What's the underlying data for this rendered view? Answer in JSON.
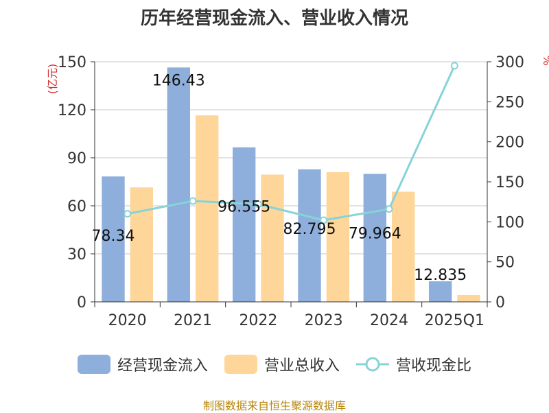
{
  "title": "历年经营现金流入、营业收入情况",
  "source": "制图数据来自恒生聚源数据库",
  "colors": {
    "cash_inflow": "#8eaedb",
    "revenue": "#ffd699",
    "ratio": "#86d3d8",
    "grid": "#c7c7c7",
    "axis": "#333333",
    "unit": "#d32f2f"
  },
  "chart_data": {
    "type": "bar",
    "categories": [
      "2020",
      "2021",
      "2022",
      "2023",
      "2024",
      "2025Q1"
    ],
    "series": [
      {
        "name": "经营现金流入",
        "type": "bar",
        "axis": "left",
        "values": [
          78.34,
          146.43,
          96.555,
          82.795,
          79.964,
          12.835
        ]
      },
      {
        "name": "营业总收入",
        "type": "bar",
        "axis": "left",
        "values": [
          71.5,
          116.5,
          79.5,
          81.0,
          68.8,
          4.3
        ]
      },
      {
        "name": "营收现金比",
        "type": "line",
        "axis": "right",
        "values": [
          110,
          126,
          122,
          102,
          116,
          295
        ]
      }
    ],
    "data_labels": [
      "78.34",
      "146.43",
      "96.555",
      "82.795",
      "79.964",
      "12.835"
    ],
    "y_left": {
      "label": "(亿元)",
      "lim": [
        0,
        150
      ],
      "ticks": [
        0,
        30,
        60,
        90,
        120,
        150
      ]
    },
    "y_right": {
      "label": "%",
      "lim": [
        0,
        300
      ],
      "ticks": [
        0,
        50,
        100,
        150,
        200,
        250,
        300
      ]
    },
    "grid": true,
    "legend_position": "bottom"
  }
}
